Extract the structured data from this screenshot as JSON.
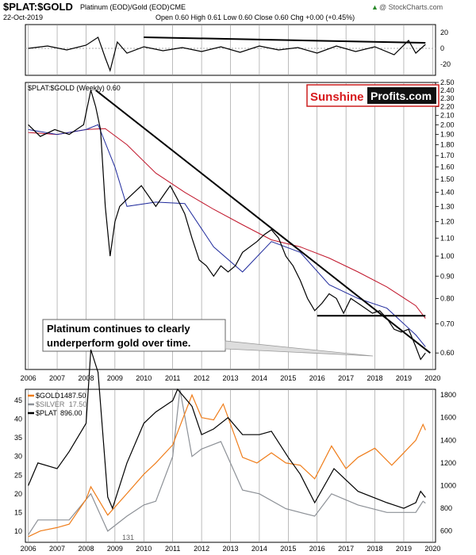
{
  "header": {
    "symbol": "$PLAT:$GOLD",
    "description": "Platinum (EOD)/Gold (EOD)",
    "exchange": "CME",
    "date": "22-Oct-2019",
    "quote": "Open 0.60  High 0.61  Low 0.60  Close 0.60  Chg +0.00 (+0.45%)",
    "quote_arrow": "▲",
    "watermark": "@ StockCharts.com"
  },
  "colors": {
    "ratio": "#000000",
    "ma_blue": "#1f2a9c",
    "ma_red": "#c0152a",
    "gold": "#ef7d1a",
    "silver": "#8c9096",
    "plat": "#000000",
    "sunshine_red": "#d7191c",
    "gridline": "#909090"
  },
  "brand": {
    "part1": "Sunshine",
    "part2": "Profits.com"
  },
  "annotation": {
    "line1": "Platinum continues to clearly",
    "line2": "underperform gold over time."
  },
  "chart_data": [
    {
      "id": "momentum",
      "type": "line",
      "title": "",
      "ylim": [
        -30,
        30
      ],
      "y_ticks": [
        20,
        0,
        -20
      ],
      "x": [
        "2006-01",
        "2006-09",
        "2007-05",
        "2008-01",
        "2008-06",
        "2008-09",
        "2008-11",
        "2009-02",
        "2009-06",
        "2010-01",
        "2010-09",
        "2011-05",
        "2012-01",
        "2012-09",
        "2013-05",
        "2014-01",
        "2014-09",
        "2015-05",
        "2016-01",
        "2016-09",
        "2017-05",
        "2018-01",
        "2018-09",
        "2019-03",
        "2019-06",
        "2019-10"
      ],
      "values": [
        0,
        3,
        -2,
        4,
        14,
        -12,
        -28,
        8,
        -6,
        2,
        -3,
        1,
        -4,
        2,
        -5,
        3,
        -2,
        1,
        -6,
        3,
        -4,
        2,
        -8,
        10,
        -6,
        5
      ],
      "trendline": {
        "x": [
          "2010-01",
          "2019-10"
        ],
        "y": [
          14,
          7
        ]
      }
    },
    {
      "id": "ratio",
      "type": "line",
      "title": "$PLAT:$GOLD (Weekly) 0.60",
      "ylim": [
        0.55,
        2.5
      ],
      "y_scale": "log",
      "y_ticks": [
        2.5,
        2.4,
        2.3,
        2.2,
        2.1,
        2.0,
        1.9,
        1.8,
        1.7,
        1.6,
        1.5,
        1.4,
        1.3,
        1.2,
        1.1,
        1.0,
        0.9,
        0.8,
        0.7,
        0.6
      ],
      "x_ticks": [
        "2006",
        "2007",
        "2008",
        "2009",
        "2010",
        "2011",
        "2012",
        "2013",
        "2014",
        "2015",
        "2016",
        "2017",
        "2018",
        "2019",
        "2020"
      ],
      "series": [
        {
          "x": [
            "2006-01",
            "2006-06",
            "2006-12",
            "2007-06",
            "2007-12",
            "2008-03",
            "2008-05",
            "2008-07",
            "2008-09",
            "2008-11",
            "2009-01",
            "2009-03",
            "2009-06",
            "2009-12",
            "2010-06",
            "2010-10",
            "2010-12",
            "2011-03",
            "2011-06",
            "2011-09",
            "2011-12",
            "2012-03",
            "2012-06",
            "2012-09",
            "2012-12",
            "2013-03",
            "2013-06",
            "2013-12",
            "2014-03",
            "2014-06",
            "2014-09",
            "2014-12",
            "2015-03",
            "2015-06",
            "2015-09",
            "2015-12",
            "2016-03",
            "2016-06",
            "2016-09",
            "2016-12",
            "2017-03",
            "2017-06",
            "2017-09",
            "2017-12",
            "2018-03",
            "2018-06",
            "2018-09",
            "2018-12",
            "2019-03",
            "2019-06",
            "2019-08",
            "2019-10"
          ],
          "values": [
            2.0,
            1.88,
            1.95,
            1.9,
            2.0,
            2.4,
            2.2,
            1.95,
            1.3,
            1.0,
            1.2,
            1.3,
            1.35,
            1.45,
            1.3,
            1.4,
            1.45,
            1.35,
            1.25,
            1.1,
            0.98,
            0.95,
            0.9,
            0.95,
            0.92,
            0.95,
            1.02,
            1.08,
            1.12,
            1.15,
            1.1,
            1.0,
            0.95,
            0.88,
            0.8,
            0.75,
            0.78,
            0.82,
            0.8,
            0.74,
            0.8,
            0.78,
            0.76,
            0.74,
            0.75,
            0.72,
            0.68,
            0.67,
            0.68,
            0.62,
            0.58,
            0.6
          ]
        },
        {
          "x": [
            "2006-01",
            "2007-01",
            "2008-01",
            "2008-06",
            "2009-01",
            "2009-06",
            "2010-06",
            "2011-06",
            "2012-06",
            "2013-06",
            "2014-06",
            "2015-06",
            "2016-06",
            "2017-06",
            "2018-06",
            "2019-06",
            "2019-10"
          ],
          "values": [
            1.95,
            1.9,
            1.95,
            2.0,
            1.6,
            1.3,
            1.33,
            1.32,
            1.05,
            0.92,
            1.08,
            1.02,
            0.86,
            0.8,
            0.76,
            0.66,
            0.62
          ]
        },
        {
          "x": [
            "2006-01",
            "2007-01",
            "2008-01",
            "2008-09",
            "2009-06",
            "2010-06",
            "2011-06",
            "2012-06",
            "2013-06",
            "2014-06",
            "2015-06",
            "2016-06",
            "2017-06",
            "2018-06",
            "2019-06",
            "2019-10"
          ],
          "values": [
            1.92,
            1.9,
            1.95,
            1.96,
            1.8,
            1.55,
            1.4,
            1.28,
            1.18,
            1.09,
            1.05,
            0.99,
            0.92,
            0.85,
            0.77,
            0.72
          ]
        }
      ],
      "trendlines": [
        {
          "x": [
            "2008-05",
            "2019-12"
          ],
          "y": [
            2.4,
            0.6
          ]
        },
        {
          "x": [
            "2016-01",
            "2019-10"
          ],
          "y": [
            0.73,
            0.73
          ]
        }
      ]
    },
    {
      "id": "metals",
      "type": "line",
      "title": "",
      "ylim_left": [
        7,
        48
      ],
      "ylim_right": [
        500,
        1850
      ],
      "y_ticks_left": [
        45,
        40,
        35,
        30,
        25,
        20,
        15,
        10
      ],
      "y_ticks_right": [
        1800,
        1600,
        1400,
        1200,
        1000,
        800,
        600
      ],
      "x_ticks": [
        "2006",
        "2007",
        "2008",
        "2009",
        "2010",
        "2011",
        "2012",
        "2013",
        "2014",
        "2015",
        "2016",
        "2017",
        "2018",
        "2019",
        "2020"
      ],
      "annotation": "131",
      "series": [
        {
          "name": "$GOLD",
          "value_label": "1487.50",
          "axis": "right",
          "x": [
            "2006-01",
            "2006-06",
            "2007-01",
            "2007-06",
            "2008-01",
            "2008-03",
            "2008-10",
            "2009-06",
            "2010-01",
            "2010-06",
            "2011-01",
            "2011-09",
            "2012-01",
            "2012-06",
            "2012-10",
            "2013-06",
            "2013-12",
            "2014-06",
            "2014-12",
            "2015-06",
            "2015-12",
            "2016-07",
            "2017-01",
            "2017-06",
            "2018-01",
            "2018-08",
            "2019-01",
            "2019-06",
            "2019-09",
            "2019-10"
          ],
          "values": [
            550,
            600,
            630,
            660,
            880,
            990,
            740,
            930,
            1100,
            1200,
            1360,
            1800,
            1600,
            1580,
            1720,
            1250,
            1200,
            1290,
            1200,
            1180,
            1060,
            1350,
            1150,
            1250,
            1330,
            1180,
            1290,
            1400,
            1540,
            1490
          ]
        },
        {
          "name": "$SILVER",
          "value_label": "17.50",
          "axis": "left",
          "x": [
            "2006-01",
            "2006-05",
            "2007-01",
            "2007-06",
            "2008-03",
            "2008-10",
            "2009-06",
            "2010-01",
            "2010-06",
            "2011-01",
            "2011-04",
            "2011-09",
            "2012-01",
            "2012-09",
            "2013-06",
            "2014-01",
            "2014-12",
            "2015-12",
            "2016-07",
            "2017-06",
            "2018-06",
            "2019-01",
            "2019-06",
            "2019-09",
            "2019-10"
          ],
          "values": [
            9,
            13,
            13,
            13,
            20,
            10,
            14,
            17,
            18,
            30,
            48,
            30,
            32,
            34,
            21,
            20,
            16,
            14,
            20,
            17,
            15,
            15,
            15,
            18,
            17.5
          ]
        },
        {
          "name": "$PLAT",
          "value_label": "896.00",
          "axis": "right",
          "x": [
            "2006-01",
            "2006-05",
            "2007-01",
            "2007-06",
            "2008-01",
            "2008-03",
            "2008-06",
            "2008-10",
            "2008-12",
            "2009-06",
            "2010-01",
            "2010-06",
            "2011-01",
            "2011-03",
            "2011-09",
            "2012-01",
            "2012-06",
            "2012-12",
            "2013-06",
            "2014-01",
            "2014-06",
            "2015-01",
            "2015-06",
            "2015-12",
            "2016-08",
            "2017-06",
            "2018-06",
            "2019-01",
            "2019-06",
            "2019-08",
            "2019-10"
          ],
          "values": [
            1000,
            1200,
            1150,
            1300,
            1550,
            2200,
            2000,
            900,
            800,
            1200,
            1550,
            1650,
            1750,
            1850,
            1700,
            1450,
            1500,
            1600,
            1450,
            1450,
            1480,
            1250,
            1100,
            850,
            1150,
            950,
            850,
            800,
            850,
            950,
            896
          ]
        }
      ]
    }
  ]
}
